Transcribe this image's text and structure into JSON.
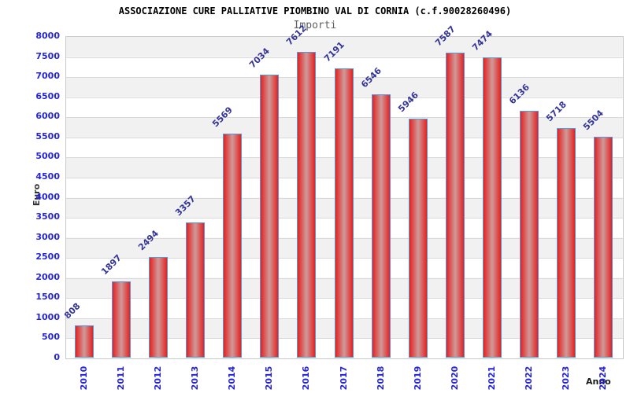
{
  "chart_data": {
    "type": "bar",
    "title": "ASSOCIAZIONE CURE PALLIATIVE PIOMBINO VAL DI CORNIA (c.f.90028260496)",
    "subtitle": "Importi",
    "categories": [
      "2010",
      "2011",
      "2012",
      "2013",
      "2014",
      "2015",
      "2016",
      "2017",
      "2018",
      "2019",
      "2020",
      "2021",
      "2022",
      "2023",
      "2024"
    ],
    "values": [
      808,
      1897,
      2494,
      3357,
      5569,
      7034,
      7612,
      7191,
      6546,
      5946,
      7587,
      7474,
      6136,
      5718,
      5504
    ],
    "xlabel": "Anno",
    "ylabel": "Euro",
    "ylim": [
      0,
      8000
    ],
    "ytick_step": 500,
    "grid": true,
    "legend_position": "none",
    "colors": {
      "bar_edge": "#e62020",
      "bar_center": "#cf9a9a",
      "bar_border": "#5599dd",
      "tick_label": "#2424d9",
      "value_label": "#333399",
      "band_gray": "#f1f1f1",
      "band_white": "#ffffff",
      "gridline": "#d9d9d9"
    }
  }
}
